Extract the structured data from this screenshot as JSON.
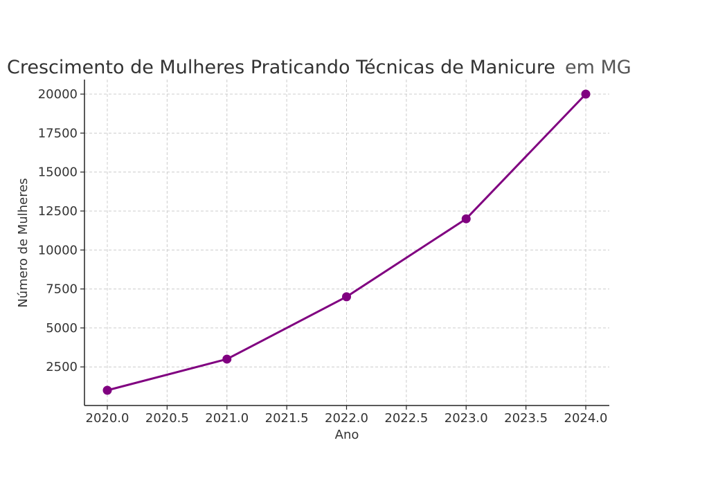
{
  "chart_data": {
    "type": "line",
    "title": "Crescimento de Mulheres Praticando Técnicas de Manicure",
    "title_suffix": "em MG",
    "xlabel": "Ano",
    "ylabel": "Número de Mulheres",
    "x": [
      2020,
      2021,
      2022,
      2023,
      2024
    ],
    "series": [
      {
        "values": [
          1000,
          3000,
          7000,
          12000,
          20000
        ],
        "color": "#800080",
        "marker": "circle"
      }
    ],
    "xlim": [
      1999.88,
      2024.2
    ],
    "ylim": [
      0,
      21000
    ],
    "xticks": [
      2020.0,
      2020.5,
      2021.0,
      2021.5,
      2022.0,
      2022.5,
      2023.0,
      2023.5,
      2024.0
    ],
    "xtick_labels": [
      "2020.0",
      "2020.5",
      "2021.0",
      "2021.5",
      "2022.0",
      "2022.5",
      "2023.0",
      "2023.5",
      "2024.0"
    ],
    "yticks": [
      2500,
      5000,
      7500,
      10000,
      12500,
      15000,
      17500,
      20000
    ],
    "ytick_labels": [
      "2500",
      "5000",
      "7500",
      "10000",
      "12500",
      "15000",
      "17500",
      "20000"
    ],
    "grid": true,
    "grid_style": "dashed"
  }
}
